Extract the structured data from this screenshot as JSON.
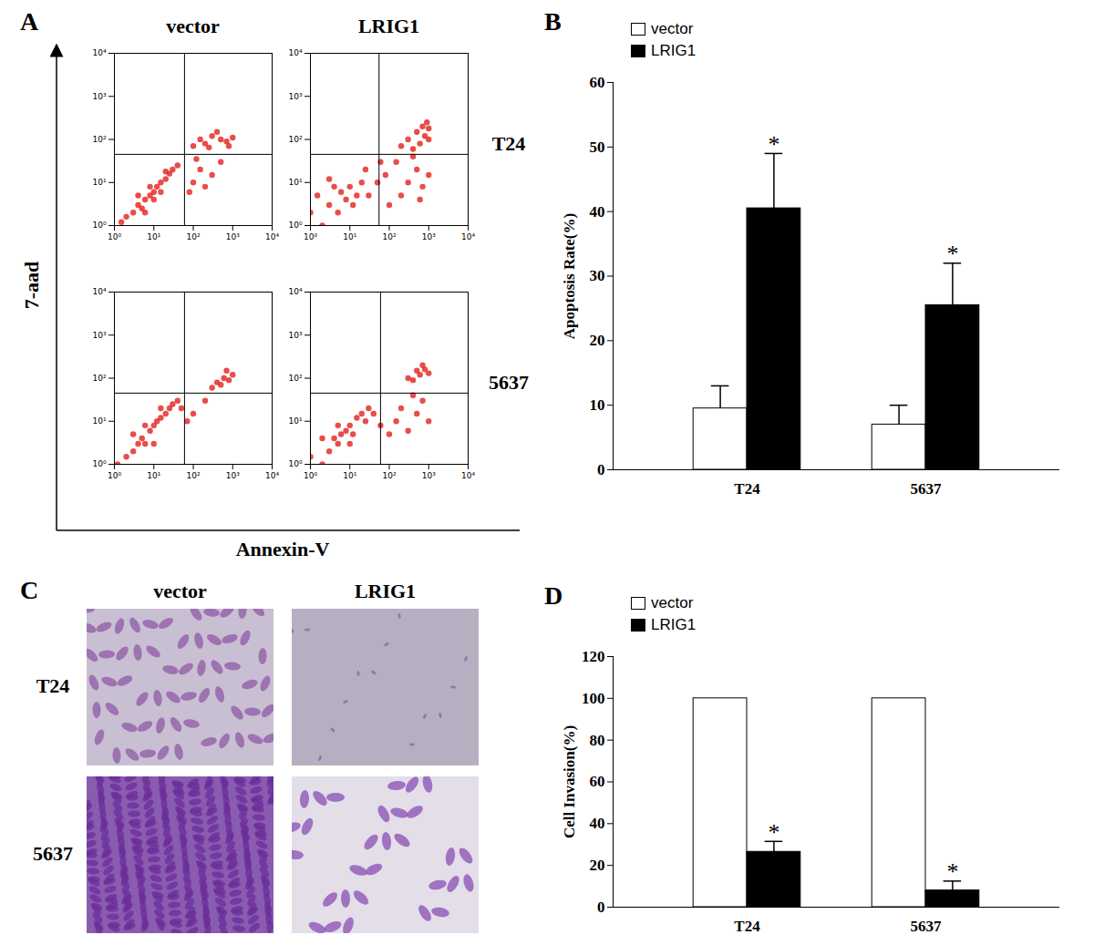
{
  "chart_data": [
    {
      "type": "scatter",
      "panel": "A",
      "x_label": "Annexin-V",
      "y_label": "7-aad",
      "column_labels": [
        "vector",
        "LRIG1"
      ],
      "row_labels": [
        "T24",
        "5637"
      ],
      "log": true,
      "color": "#e3201b",
      "xlim": [
        1,
        10000
      ],
      "ylim": [
        1,
        10000
      ],
      "xticks": [
        {
          "value": 1,
          "label": "10⁰"
        },
        {
          "value": 10,
          "label": "10¹"
        },
        {
          "value": 100,
          "label": "10²"
        },
        {
          "value": 1000,
          "label": "10³"
        },
        {
          "value": 10000,
          "label": "10⁴"
        }
      ],
      "yticks": [
        {
          "value": 1,
          "label": "10⁰"
        },
        {
          "value": 10,
          "label": "10¹"
        },
        {
          "value": 100,
          "label": "10²"
        },
        {
          "value": 1000,
          "label": "10³"
        },
        {
          "value": 10000,
          "label": "10⁴"
        }
      ],
      "plots": [
        {
          "column": "vector",
          "row": "T24",
          "gates": {
            "x": 60,
            "y": 45
          },
          "points": [
            [
              1.5,
              1.2
            ],
            [
              2,
              1.6
            ],
            [
              3,
              2
            ],
            [
              4,
              3
            ],
            [
              5,
              2.5
            ],
            [
              6,
              4
            ],
            [
              8,
              5
            ],
            [
              10,
              6
            ],
            [
              12,
              8
            ],
            [
              15,
              10
            ],
            [
              20,
              12
            ],
            [
              25,
              16
            ],
            [
              30,
              20
            ],
            [
              40,
              25
            ],
            [
              6,
              2
            ],
            [
              10,
              4
            ],
            [
              4,
              5
            ],
            [
              8,
              8
            ],
            [
              15,
              6
            ],
            [
              20,
              18
            ],
            [
              100,
              10
            ],
            [
              150,
              20
            ],
            [
              200,
              8
            ],
            [
              300,
              15
            ],
            [
              500,
              30
            ],
            [
              80,
              6
            ],
            [
              120,
              35
            ],
            [
              100,
              70
            ],
            [
              150,
              100
            ],
            [
              200,
              80
            ],
            [
              300,
              120
            ],
            [
              500,
              100
            ],
            [
              700,
              90
            ],
            [
              1000,
              110
            ],
            [
              400,
              150
            ],
            [
              250,
              65
            ],
            [
              800,
              70
            ]
          ]
        },
        {
          "column": "LRIG1",
          "row": "T24",
          "gates": {
            "x": 55,
            "y": 45
          },
          "points": [
            [
              1,
              2
            ],
            [
              2,
              1
            ],
            [
              3,
              3
            ],
            [
              5,
              2
            ],
            [
              8,
              4
            ],
            [
              10,
              8
            ],
            [
              15,
              5
            ],
            [
              20,
              10
            ],
            [
              25,
              20
            ],
            [
              4,
              8
            ],
            [
              6,
              6
            ],
            [
              12,
              3
            ],
            [
              1.5,
              5
            ],
            [
              3,
              12
            ],
            [
              30,
              5
            ],
            [
              50,
              10
            ],
            [
              60,
              30
            ],
            [
              100,
              3
            ],
            [
              200,
              5
            ],
            [
              300,
              10
            ],
            [
              500,
              20
            ],
            [
              700,
              8
            ],
            [
              1000,
              15
            ],
            [
              150,
              30
            ],
            [
              400,
              40
            ],
            [
              80,
              15
            ],
            [
              600,
              4
            ],
            [
              300,
              100
            ],
            [
              500,
              150
            ],
            [
              700,
              200
            ],
            [
              800,
              120
            ],
            [
              1000,
              180
            ],
            [
              600,
              80
            ],
            [
              400,
              60
            ],
            [
              900,
              250
            ],
            [
              200,
              70
            ],
            [
              1000,
              100
            ]
          ]
        },
        {
          "column": "vector",
          "row": "5637",
          "gates": {
            "x": 60,
            "y": 45
          },
          "points": [
            [
              1.2,
              1
            ],
            [
              2,
              1.5
            ],
            [
              3,
              2
            ],
            [
              4,
              3
            ],
            [
              5,
              4
            ],
            [
              6,
              3
            ],
            [
              8,
              6
            ],
            [
              10,
              8
            ],
            [
              12,
              10
            ],
            [
              15,
              12
            ],
            [
              20,
              15
            ],
            [
              25,
              20
            ],
            [
              30,
              25
            ],
            [
              40,
              30
            ],
            [
              3,
              5
            ],
            [
              6,
              8
            ],
            [
              10,
              3
            ],
            [
              15,
              20
            ],
            [
              50,
              20
            ],
            [
              70,
              10
            ],
            [
              100,
              15
            ],
            [
              200,
              30
            ],
            [
              300,
              60
            ],
            [
              400,
              80
            ],
            [
              500,
              70
            ],
            [
              600,
              100
            ],
            [
              800,
              90
            ],
            [
              1000,
              120
            ],
            [
              700,
              150
            ]
          ]
        },
        {
          "column": "LRIG1",
          "row": "5637",
          "gates": {
            "x": 60,
            "y": 45
          },
          "points": [
            [
              1,
              1.5
            ],
            [
              2,
              1
            ],
            [
              3,
              2
            ],
            [
              4,
              4
            ],
            [
              5,
              3
            ],
            [
              6,
              5
            ],
            [
              8,
              6
            ],
            [
              10,
              8
            ],
            [
              12,
              5
            ],
            [
              15,
              12
            ],
            [
              20,
              15
            ],
            [
              25,
              10
            ],
            [
              30,
              20
            ],
            [
              2,
              4
            ],
            [
              5,
              8
            ],
            [
              10,
              3
            ],
            [
              40,
              15
            ],
            [
              60,
              8
            ],
            [
              100,
              5
            ],
            [
              150,
              10
            ],
            [
              200,
              20
            ],
            [
              300,
              6
            ],
            [
              500,
              15
            ],
            [
              700,
              30
            ],
            [
              1000,
              10
            ],
            [
              400,
              40
            ],
            [
              300,
              100
            ],
            [
              500,
              150
            ],
            [
              600,
              120
            ],
            [
              800,
              160
            ],
            [
              1000,
              130
            ],
            [
              700,
              200
            ],
            [
              400,
              90
            ]
          ]
        }
      ]
    },
    {
      "type": "bar",
      "panel": "B",
      "y_label": "Apoptosis Rate(%)",
      "categories": [
        "T24",
        "5637"
      ],
      "series": [
        {
          "name": "vector",
          "color": "#ffffff",
          "values": [
            9.5,
            7
          ],
          "errors": [
            3.5,
            3
          ]
        },
        {
          "name": "LRIG1",
          "color": "#000000",
          "values": [
            40.5,
            25.5
          ],
          "errors": [
            8.5,
            6.5
          ]
        }
      ],
      "ylim": [
        0,
        60
      ],
      "yticks": [
        0,
        10,
        20,
        30,
        40,
        50,
        60
      ],
      "legend": "top-left",
      "annotations": [
        {
          "text": "*",
          "category": "T24",
          "series": "LRIG1"
        },
        {
          "text": "*",
          "category": "5637",
          "series": "LRIG1"
        }
      ]
    },
    {
      "type": "image",
      "panel": "C",
      "column_labels": [
        "vector",
        "LRIG1"
      ],
      "row_labels": [
        "T24",
        "5637"
      ]
    },
    {
      "type": "bar",
      "panel": "D",
      "y_label": "Cell Invasion(%)",
      "categories": [
        "T24",
        "5637"
      ],
      "series": [
        {
          "name": "vector",
          "color": "#ffffff",
          "values": [
            100,
            100
          ]
        },
        {
          "name": "LRIG1",
          "color": "#000000",
          "values": [
            26.5,
            8
          ],
          "errors": [
            5,
            4.5
          ]
        }
      ],
      "ylim": [
        0,
        120
      ],
      "yticks": [
        0,
        20,
        40,
        60,
        80,
        100,
        120
      ],
      "legend": "top-left",
      "annotations": [
        {
          "text": "*",
          "category": "T24",
          "series": "LRIG1"
        },
        {
          "text": "*",
          "category": "5637",
          "series": "LRIG1"
        }
      ]
    }
  ]
}
